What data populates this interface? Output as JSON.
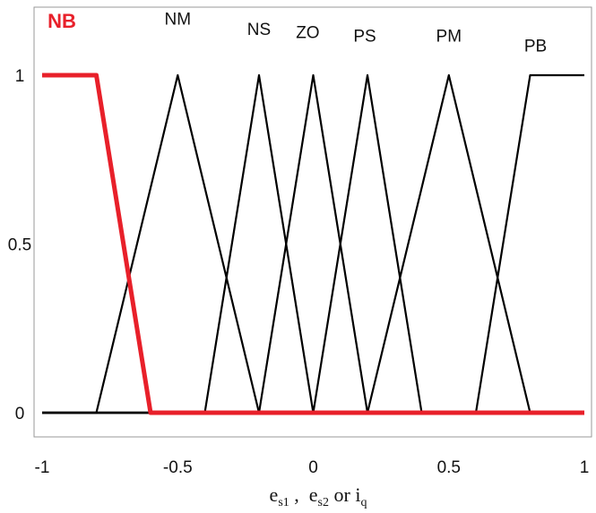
{
  "chart_data": {
    "type": "line",
    "title": "",
    "xlabel": {
      "e1": "e",
      "s1": "s1",
      "sep1": " ,  ",
      "e2": "e",
      "s2": "s2",
      "or": " or ",
      "i": "i",
      "q": "q"
    },
    "ylabel": "",
    "xlim": [
      -1,
      1
    ],
    "ylim": [
      0,
      1
    ],
    "x_ticks": [
      -1,
      -0.5,
      0,
      0.5,
      1
    ],
    "x_tick_labels": [
      "-1",
      "-0.5",
      "0",
      "0.5",
      "1"
    ],
    "y_ticks": [
      0,
      0.5,
      1
    ],
    "y_tick_labels": [
      "0",
      "0.5",
      "1"
    ],
    "grid": false,
    "highlight_color": "#e8202a",
    "line_color": "#000000",
    "series": [
      {
        "name": "NB",
        "highlight": true,
        "x": [
          -1,
          -0.8,
          -0.6,
          1
        ],
        "y": [
          1,
          1,
          0,
          0
        ]
      },
      {
        "name": "NM",
        "highlight": false,
        "x": [
          -1,
          -0.8,
          -0.5,
          -0.2,
          1
        ],
        "y": [
          0,
          0,
          1,
          0,
          0
        ]
      },
      {
        "name": "NS",
        "highlight": false,
        "x": [
          -1,
          -0.4,
          -0.2,
          0,
          1
        ],
        "y": [
          0,
          0,
          1,
          0,
          0
        ]
      },
      {
        "name": "ZO",
        "highlight": false,
        "x": [
          -1,
          -0.2,
          0,
          0.2,
          1
        ],
        "y": [
          0,
          0,
          1,
          0,
          0
        ]
      },
      {
        "name": "PS",
        "highlight": false,
        "x": [
          -1,
          0,
          0.2,
          0.4,
          1
        ],
        "y": [
          0,
          0,
          1,
          0,
          0
        ]
      },
      {
        "name": "PM",
        "highlight": false,
        "x": [
          -1,
          0.2,
          0.5,
          0.8,
          1
        ],
        "y": [
          0,
          0,
          1,
          0,
          0
        ]
      },
      {
        "name": "PB",
        "highlight": false,
        "x": [
          -1,
          0.6,
          0.8,
          1
        ],
        "y": [
          0,
          0,
          1,
          1
        ]
      }
    ],
    "mf_labels": [
      {
        "text": "NB",
        "x": -0.98,
        "y": 1.14,
        "highlight": true
      },
      {
        "text": "NM",
        "x": -0.5,
        "y": 1.15,
        "highlight": false
      },
      {
        "text": "NS",
        "x": -0.2,
        "y": 1.12,
        "highlight": false
      },
      {
        "text": "ZO",
        "x": -0.02,
        "y": 1.11,
        "highlight": false
      },
      {
        "text": "PS",
        "x": 0.19,
        "y": 1.1,
        "highlight": false
      },
      {
        "text": "PM",
        "x": 0.5,
        "y": 1.1,
        "highlight": false
      },
      {
        "text": "PB",
        "x": 0.82,
        "y": 1.07,
        "highlight": false
      }
    ]
  }
}
